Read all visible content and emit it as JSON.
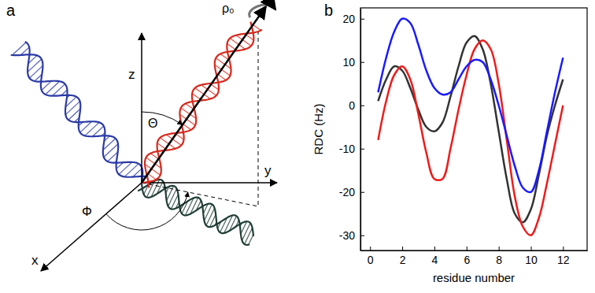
{
  "chart_data": {
    "type": "line",
    "panel": "b",
    "xlabel": "residue number",
    "ylabel": "RDC (Hz)",
    "x": [
      0.5,
      1,
      1.5,
      2,
      2.5,
      3,
      3.5,
      4,
      4.5,
      5,
      5.5,
      6,
      6.5,
      7,
      7.5,
      8,
      8.5,
      9,
      9.5,
      10,
      10.5,
      11,
      11.5,
      12
    ],
    "xlim": [
      -0.6,
      13.5
    ],
    "xticks": [
      0,
      2,
      4,
      6,
      8,
      10,
      12
    ],
    "ylim": [
      -33.5,
      22.5
    ],
    "yticks": [
      -30,
      -20,
      -10,
      0,
      10,
      20
    ],
    "grid": false,
    "series": [
      {
        "color": "#333333",
        "values": [
          1,
          6,
          9,
          8,
          4,
          -1,
          -5,
          -6,
          -4,
          2,
          9,
          14.5,
          16,
          13,
          5,
          -6,
          -17,
          -25,
          -27,
          -24,
          -16,
          -7,
          0,
          6
        ]
      },
      {
        "color": "#ee1c1c",
        "values": [
          -8,
          1,
          7,
          9,
          6,
          -2,
          -11,
          -17,
          -17,
          -10,
          -1,
          7,
          13,
          15,
          13,
          5,
          -8,
          -21,
          -28,
          -30,
          -26,
          -18,
          -9,
          0
        ]
      },
      {
        "color": "#1a1aff",
        "values": [
          3,
          11,
          17,
          20,
          19,
          14,
          8,
          4,
          2.5,
          3,
          6,
          9,
          10.5,
          10,
          6,
          0,
          -7,
          -14,
          -19,
          -20,
          -15,
          -6,
          3,
          11
        ]
      }
    ]
  },
  "diagram": {
    "panel": "a",
    "axes": {
      "x": "x",
      "y": "y",
      "z": "z"
    },
    "angles": {
      "polar": "Θ",
      "azimuth": "Φ",
      "twist": "ρ₀"
    }
  }
}
